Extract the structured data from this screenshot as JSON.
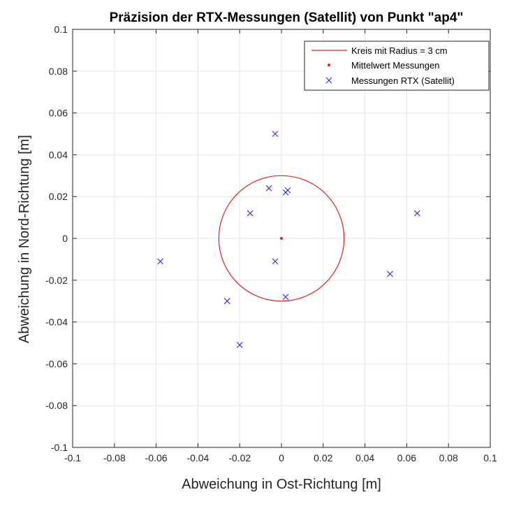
{
  "chart_data": {
    "type": "scatter",
    "title": "Präzision der RTX-Messungen (Satellit) von Punkt \"ap4\"",
    "xlabel": "Abweichung in Ost-Richtung [m]",
    "ylabel": "Abweichung in Nord-Richtung [m]",
    "xlim": [
      -0.1,
      0.1
    ],
    "ylim": [
      -0.1,
      0.1
    ],
    "grid": true,
    "legend_position": "top-right",
    "xticks": [
      -0.1,
      -0.08,
      -0.06,
      -0.04,
      -0.02,
      0,
      0.02,
      0.04,
      0.06,
      0.08,
      0.1
    ],
    "yticks": [
      -0.1,
      -0.08,
      -0.06,
      -0.04,
      -0.02,
      0,
      0.02,
      0.04,
      0.06,
      0.08,
      0.1
    ],
    "xtick_labels": [
      "-0.1",
      "-0.08",
      "-0.06",
      "-0.04",
      "-0.02",
      "0",
      "0.02",
      "0.04",
      "0.06",
      "0.08",
      "0.1"
    ],
    "ytick_labels": [
      "-0.1",
      "-0.08",
      "-0.06",
      "-0.04",
      "-0.02",
      "0",
      "0.02",
      "0.04",
      "0.06",
      "0.08",
      "0.1"
    ],
    "series": [
      {
        "name": "Kreis mit Radius = 3 cm",
        "kind": "circle",
        "center": [
          0,
          0
        ],
        "radius": 0.03,
        "color": "#e0221e"
      },
      {
        "name": "Mittelwert Messungen",
        "kind": "point",
        "x": [
          0
        ],
        "y": [
          0
        ],
        "color": "#e0221e"
      },
      {
        "name": "Messungen RTX (Satellit)",
        "kind": "x-marker",
        "color": "#2a2ad6",
        "x": [
          -0.003,
          -0.006,
          0.002,
          0.003,
          -0.015,
          -0.058,
          -0.003,
          0.002,
          -0.026,
          -0.02,
          0.052,
          0.065
        ],
        "y": [
          0.05,
          0.024,
          0.022,
          0.023,
          0.012,
          -0.011,
          -0.011,
          -0.028,
          -0.03,
          -0.051,
          -0.017,
          0.012
        ]
      }
    ]
  },
  "colors": {
    "grid": "#e6e6e6",
    "axis": "#262626",
    "background": "#ffffff"
  }
}
